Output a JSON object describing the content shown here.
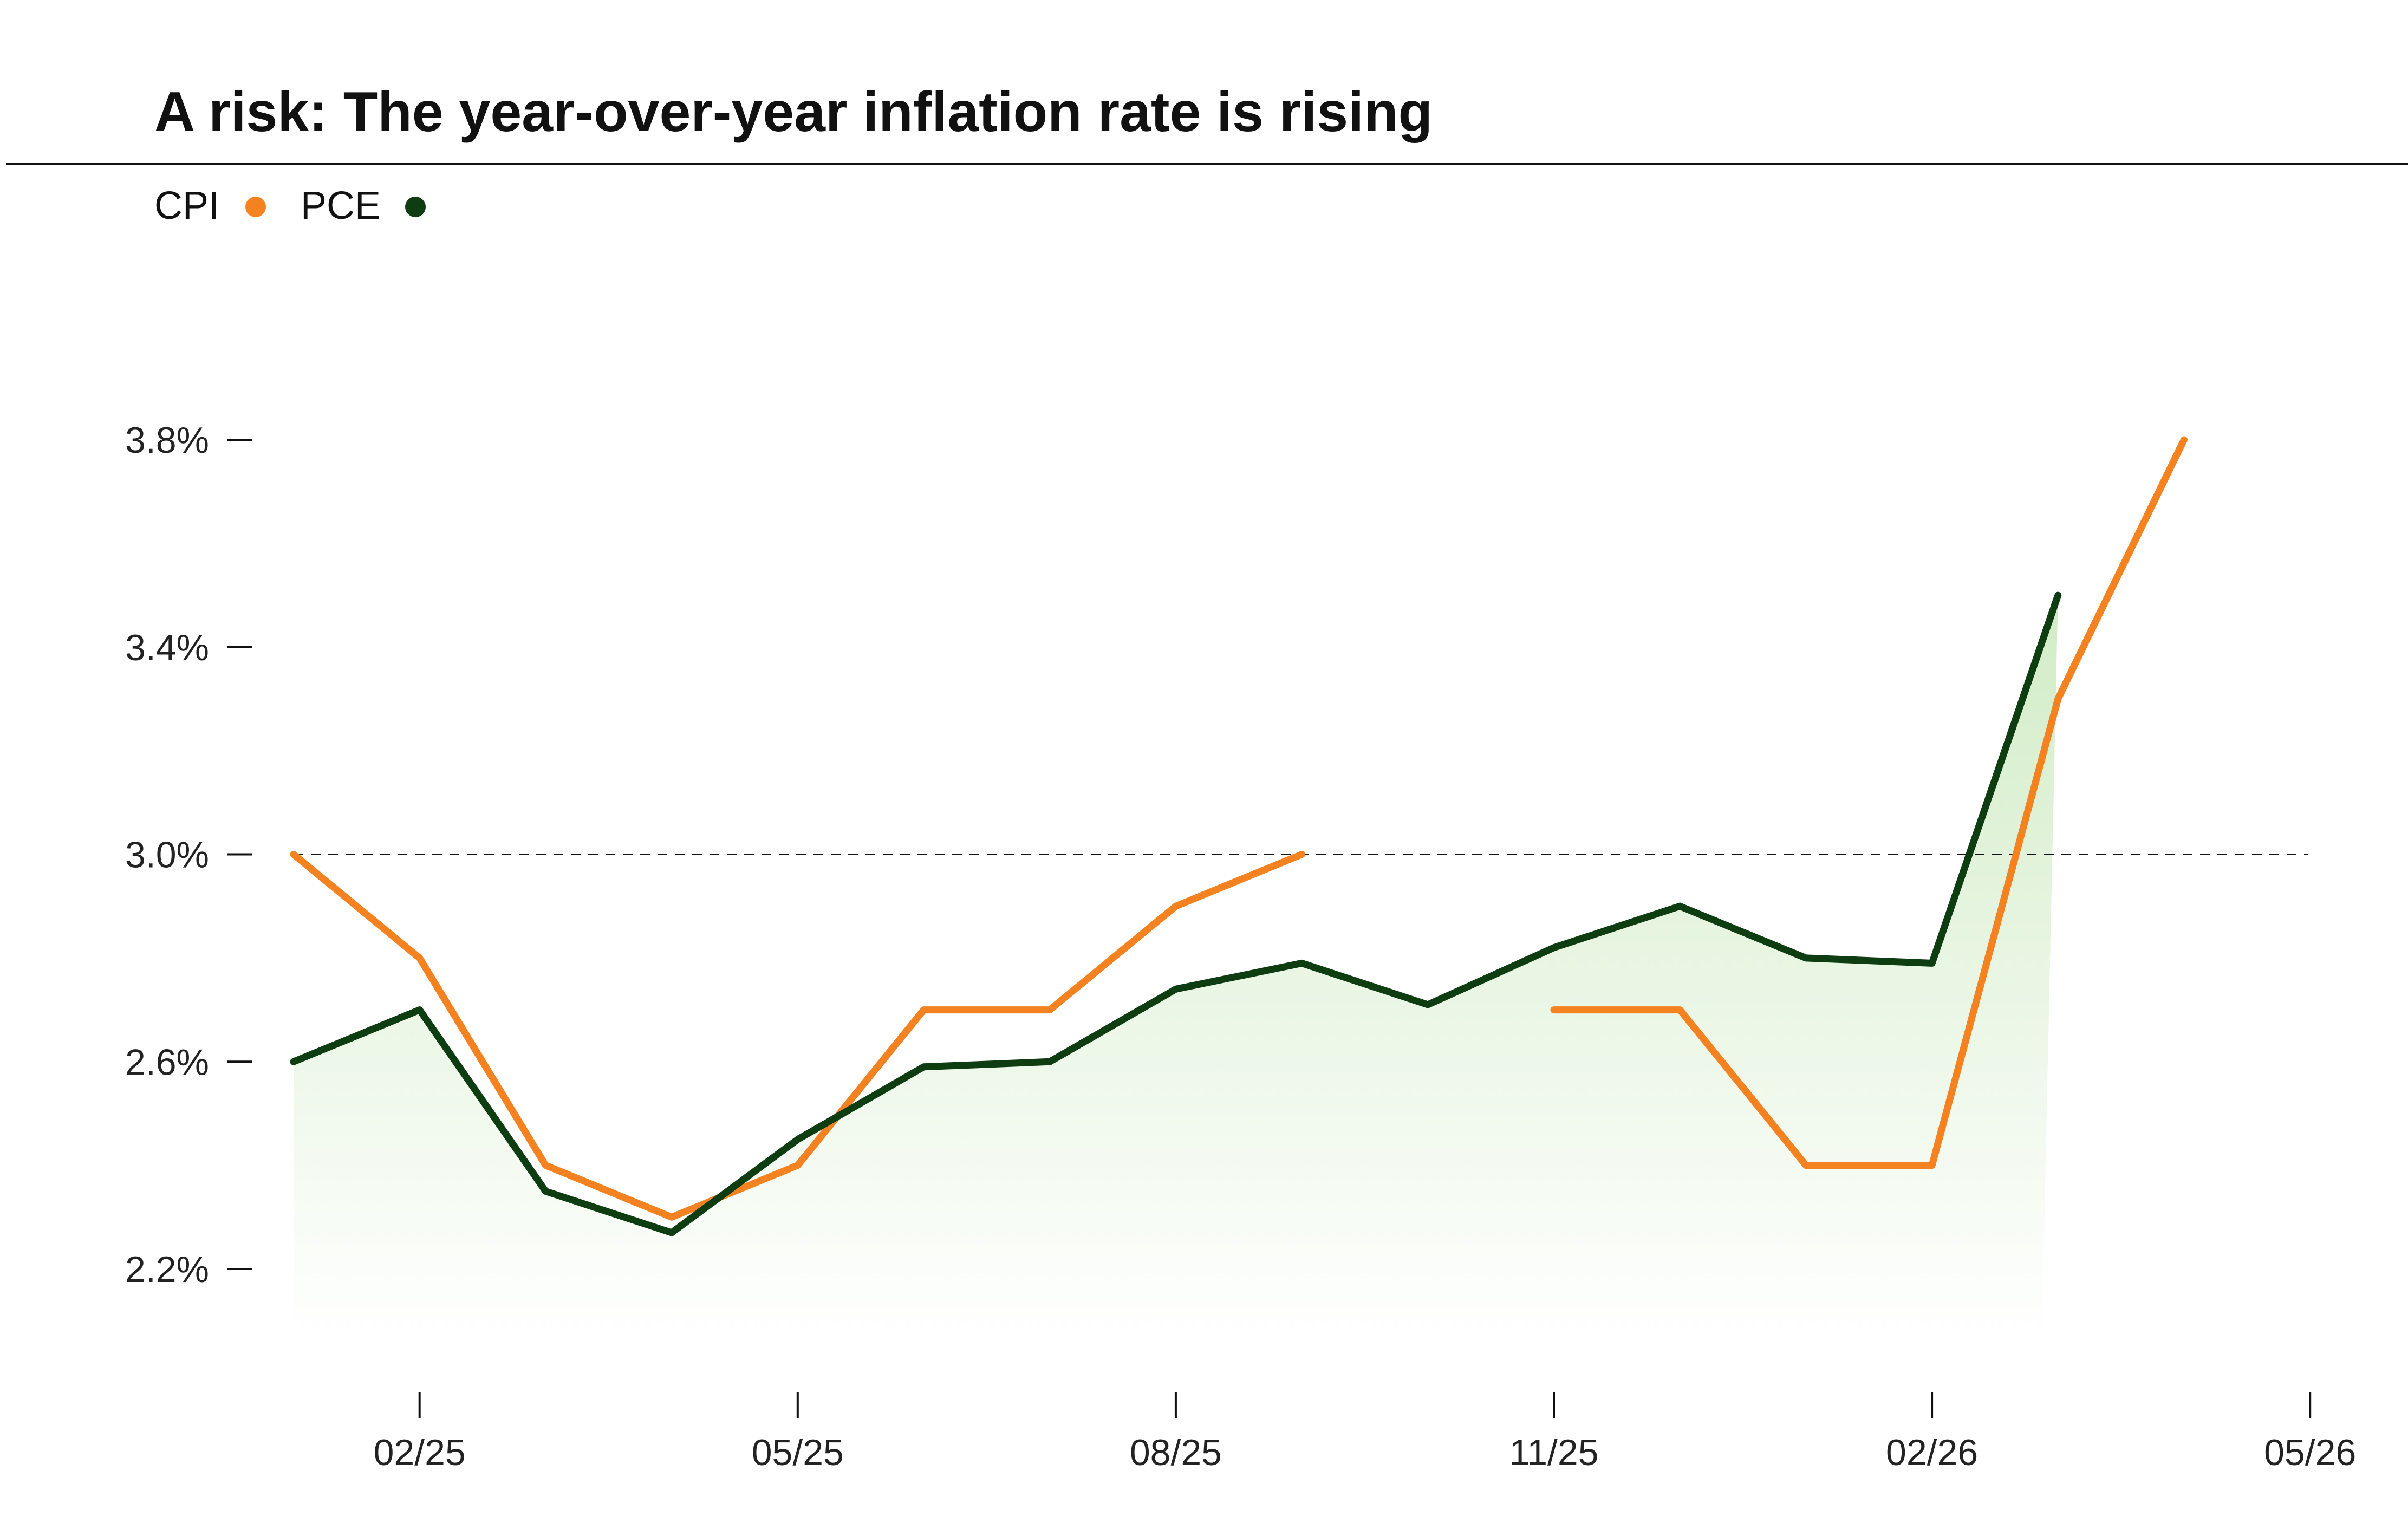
{
  "chart_data": {
    "type": "line",
    "title": "A risk: The year-over-year inflation rate is rising",
    "legend": [
      {
        "name": "CPI",
        "color": "#F58220"
      },
      {
        "name": "PCE",
        "color": "#0F3D12"
      }
    ],
    "legend_position": "top-left",
    "x_ticks": [
      "02/25",
      "05/25",
      "08/25",
      "11/25",
      "02/26",
      "05/26"
    ],
    "y_ticks": [
      "2.2%",
      "2.6%",
      "3.0%",
      "3.4%",
      "3.8%"
    ],
    "y_tick_values": [
      2.2,
      2.6,
      3.0,
      3.4,
      3.8
    ],
    "ylim": [
      2.07,
      3.98
    ],
    "xlim": [
      "2025-01",
      "2026-05"
    ],
    "reference_line": {
      "y": 3.0,
      "style": "dashed"
    },
    "grid": false,
    "x": [
      "2025-01",
      "2025-02",
      "2025-03",
      "2025-04",
      "2025-05",
      "2025-06",
      "2025-07",
      "2025-08",
      "2025-09",
      "2025-10",
      "2025-11",
      "2025-12",
      "2026-01",
      "2026-02",
      "2026-03",
      "2026-04"
    ],
    "series": [
      {
        "name": "CPI",
        "color": "#F58220",
        "values": [
          3.0,
          2.8,
          2.4,
          2.3,
          2.4,
          2.7,
          2.7,
          2.9,
          3.0,
          null,
          2.7,
          2.7,
          2.4,
          2.4,
          3.3,
          3.8
        ]
      },
      {
        "name": "PCE",
        "color": "#0F3D12",
        "area_fill": "#CFEBC3",
        "values": [
          2.6,
          2.7,
          2.35,
          2.27,
          2.45,
          2.59,
          2.6,
          2.74,
          2.79,
          2.71,
          2.82,
          2.9,
          2.8,
          2.79,
          3.5,
          null
        ]
      }
    ]
  }
}
